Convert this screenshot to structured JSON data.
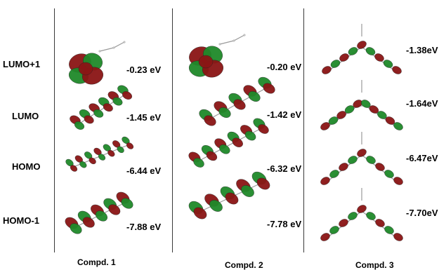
{
  "levels": [
    "LUMO+1",
    "LUMO",
    "HOMO",
    "HOMO-1"
  ],
  "compounds": [
    {
      "caption": "Compd. 1",
      "energies": [
        "-0.23 eV",
        "-1.45 eV",
        "-6.44 eV",
        "-7.88 eV"
      ]
    },
    {
      "caption": "Compd. 2",
      "energies": [
        "-0.20 eV",
        "-1.42 eV",
        "-6.32 eV",
        "-7.78 eV"
      ]
    },
    {
      "caption": "Compd. 3",
      "energies": [
        "-1.38eV",
        "-1.64eV",
        "-6.47eV",
        "-7.70eV"
      ]
    }
  ],
  "colors": {
    "lobe_positive": "#8b1515",
    "lobe_negative": "#1f8a2a"
  }
}
